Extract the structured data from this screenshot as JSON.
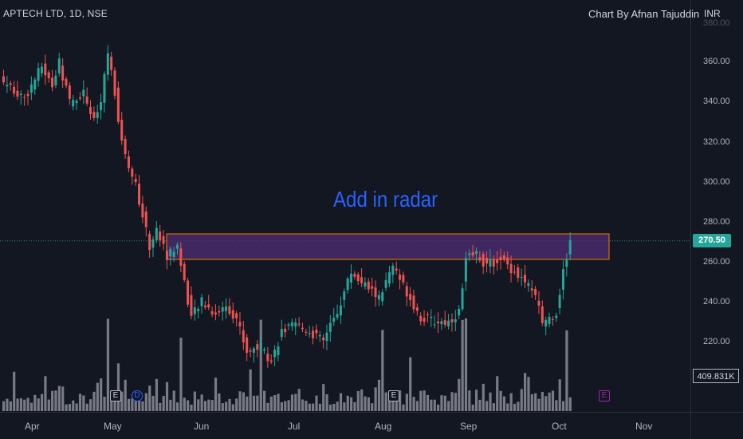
{
  "header": {
    "title": "APTECH LTD, 1D, NSE",
    "author": "Chart By Afnan Tajuddin",
    "currency": "INR"
  },
  "annotation": "Add in radar",
  "last_price_label": "270.50",
  "volume_label": "409.831K",
  "events": [
    {
      "glyph": "E",
      "kind": "earnings"
    },
    {
      "glyph": "D",
      "kind": "dividend"
    },
    {
      "glyph": "E",
      "kind": "earnings"
    },
    {
      "glyph": "E",
      "kind": "earnings-upcoming"
    }
  ],
  "colors": {
    "background": "#131722",
    "up": "#26a69a",
    "down": "#ef5350",
    "volume": "#787b86",
    "zone_fill": "#4a2a6a",
    "zone_border": "#f57c00",
    "annotation": "#2962ff"
  },
  "chart_data": {
    "type": "candlestick",
    "ylabel": "INR",
    "ylim": [
      200,
      380
    ],
    "y_ticks": [
      "220.00",
      "240.00",
      "260.00",
      "280.00",
      "300.00",
      "320.00",
      "340.00",
      "360.00",
      "380.00"
    ],
    "x_ticks": [
      "Apr",
      "May",
      "Jun",
      "Jul",
      "Aug",
      "Sep",
      "Oct",
      "Nov"
    ],
    "last_price": 270.5,
    "resistance_zone": {
      "low": 261,
      "high": 274,
      "from": "May",
      "to": "Oct"
    },
    "anchors": [
      {
        "i": 0,
        "p": 350
      },
      {
        "i": 6,
        "p": 342
      },
      {
        "i": 11,
        "p": 358
      },
      {
        "i": 14,
        "p": 348
      },
      {
        "i": 16,
        "p": 360
      },
      {
        "i": 19,
        "p": 340
      },
      {
        "i": 23,
        "p": 345
      },
      {
        "i": 26,
        "p": 330
      },
      {
        "i": 28,
        "p": 340
      },
      {
        "i": 30,
        "p": 365
      },
      {
        "i": 32,
        "p": 345
      },
      {
        "i": 34,
        "p": 320
      },
      {
        "i": 38,
        "p": 298
      },
      {
        "i": 42,
        "p": 268
      },
      {
        "i": 44,
        "p": 276
      },
      {
        "i": 47,
        "p": 263
      },
      {
        "i": 50,
        "p": 268
      },
      {
        "i": 54,
        "p": 232
      },
      {
        "i": 57,
        "p": 240
      },
      {
        "i": 61,
        "p": 234
      },
      {
        "i": 64,
        "p": 238
      },
      {
        "i": 67,
        "p": 232
      },
      {
        "i": 70,
        "p": 215
      },
      {
        "i": 74,
        "p": 218
      },
      {
        "i": 77,
        "p": 210
      },
      {
        "i": 80,
        "p": 225
      },
      {
        "i": 84,
        "p": 228
      },
      {
        "i": 88,
        "p": 225
      },
      {
        "i": 92,
        "p": 220
      },
      {
        "i": 96,
        "p": 235
      },
      {
        "i": 100,
        "p": 255
      },
      {
        "i": 104,
        "p": 248
      },
      {
        "i": 108,
        "p": 242
      },
      {
        "i": 112,
        "p": 257
      },
      {
        "i": 116,
        "p": 245
      },
      {
        "i": 120,
        "p": 232
      },
      {
        "i": 124,
        "p": 230
      },
      {
        "i": 128,
        "p": 230
      },
      {
        "i": 131,
        "p": 235
      },
      {
        "i": 133,
        "p": 262
      },
      {
        "i": 136,
        "p": 264
      },
      {
        "i": 139,
        "p": 258
      },
      {
        "i": 143,
        "p": 262
      },
      {
        "i": 147,
        "p": 255
      },
      {
        "i": 151,
        "p": 248
      },
      {
        "i": 153,
        "p": 242
      },
      {
        "i": 155,
        "p": 230
      },
      {
        "i": 157,
        "p": 232
      },
      {
        "i": 159,
        "p": 235
      },
      {
        "i": 161,
        "p": 255
      },
      {
        "i": 163,
        "p": 270.5
      }
    ],
    "volume_peaks": [
      30,
      33,
      51,
      71,
      74,
      109,
      117,
      132,
      133,
      162
    ]
  }
}
